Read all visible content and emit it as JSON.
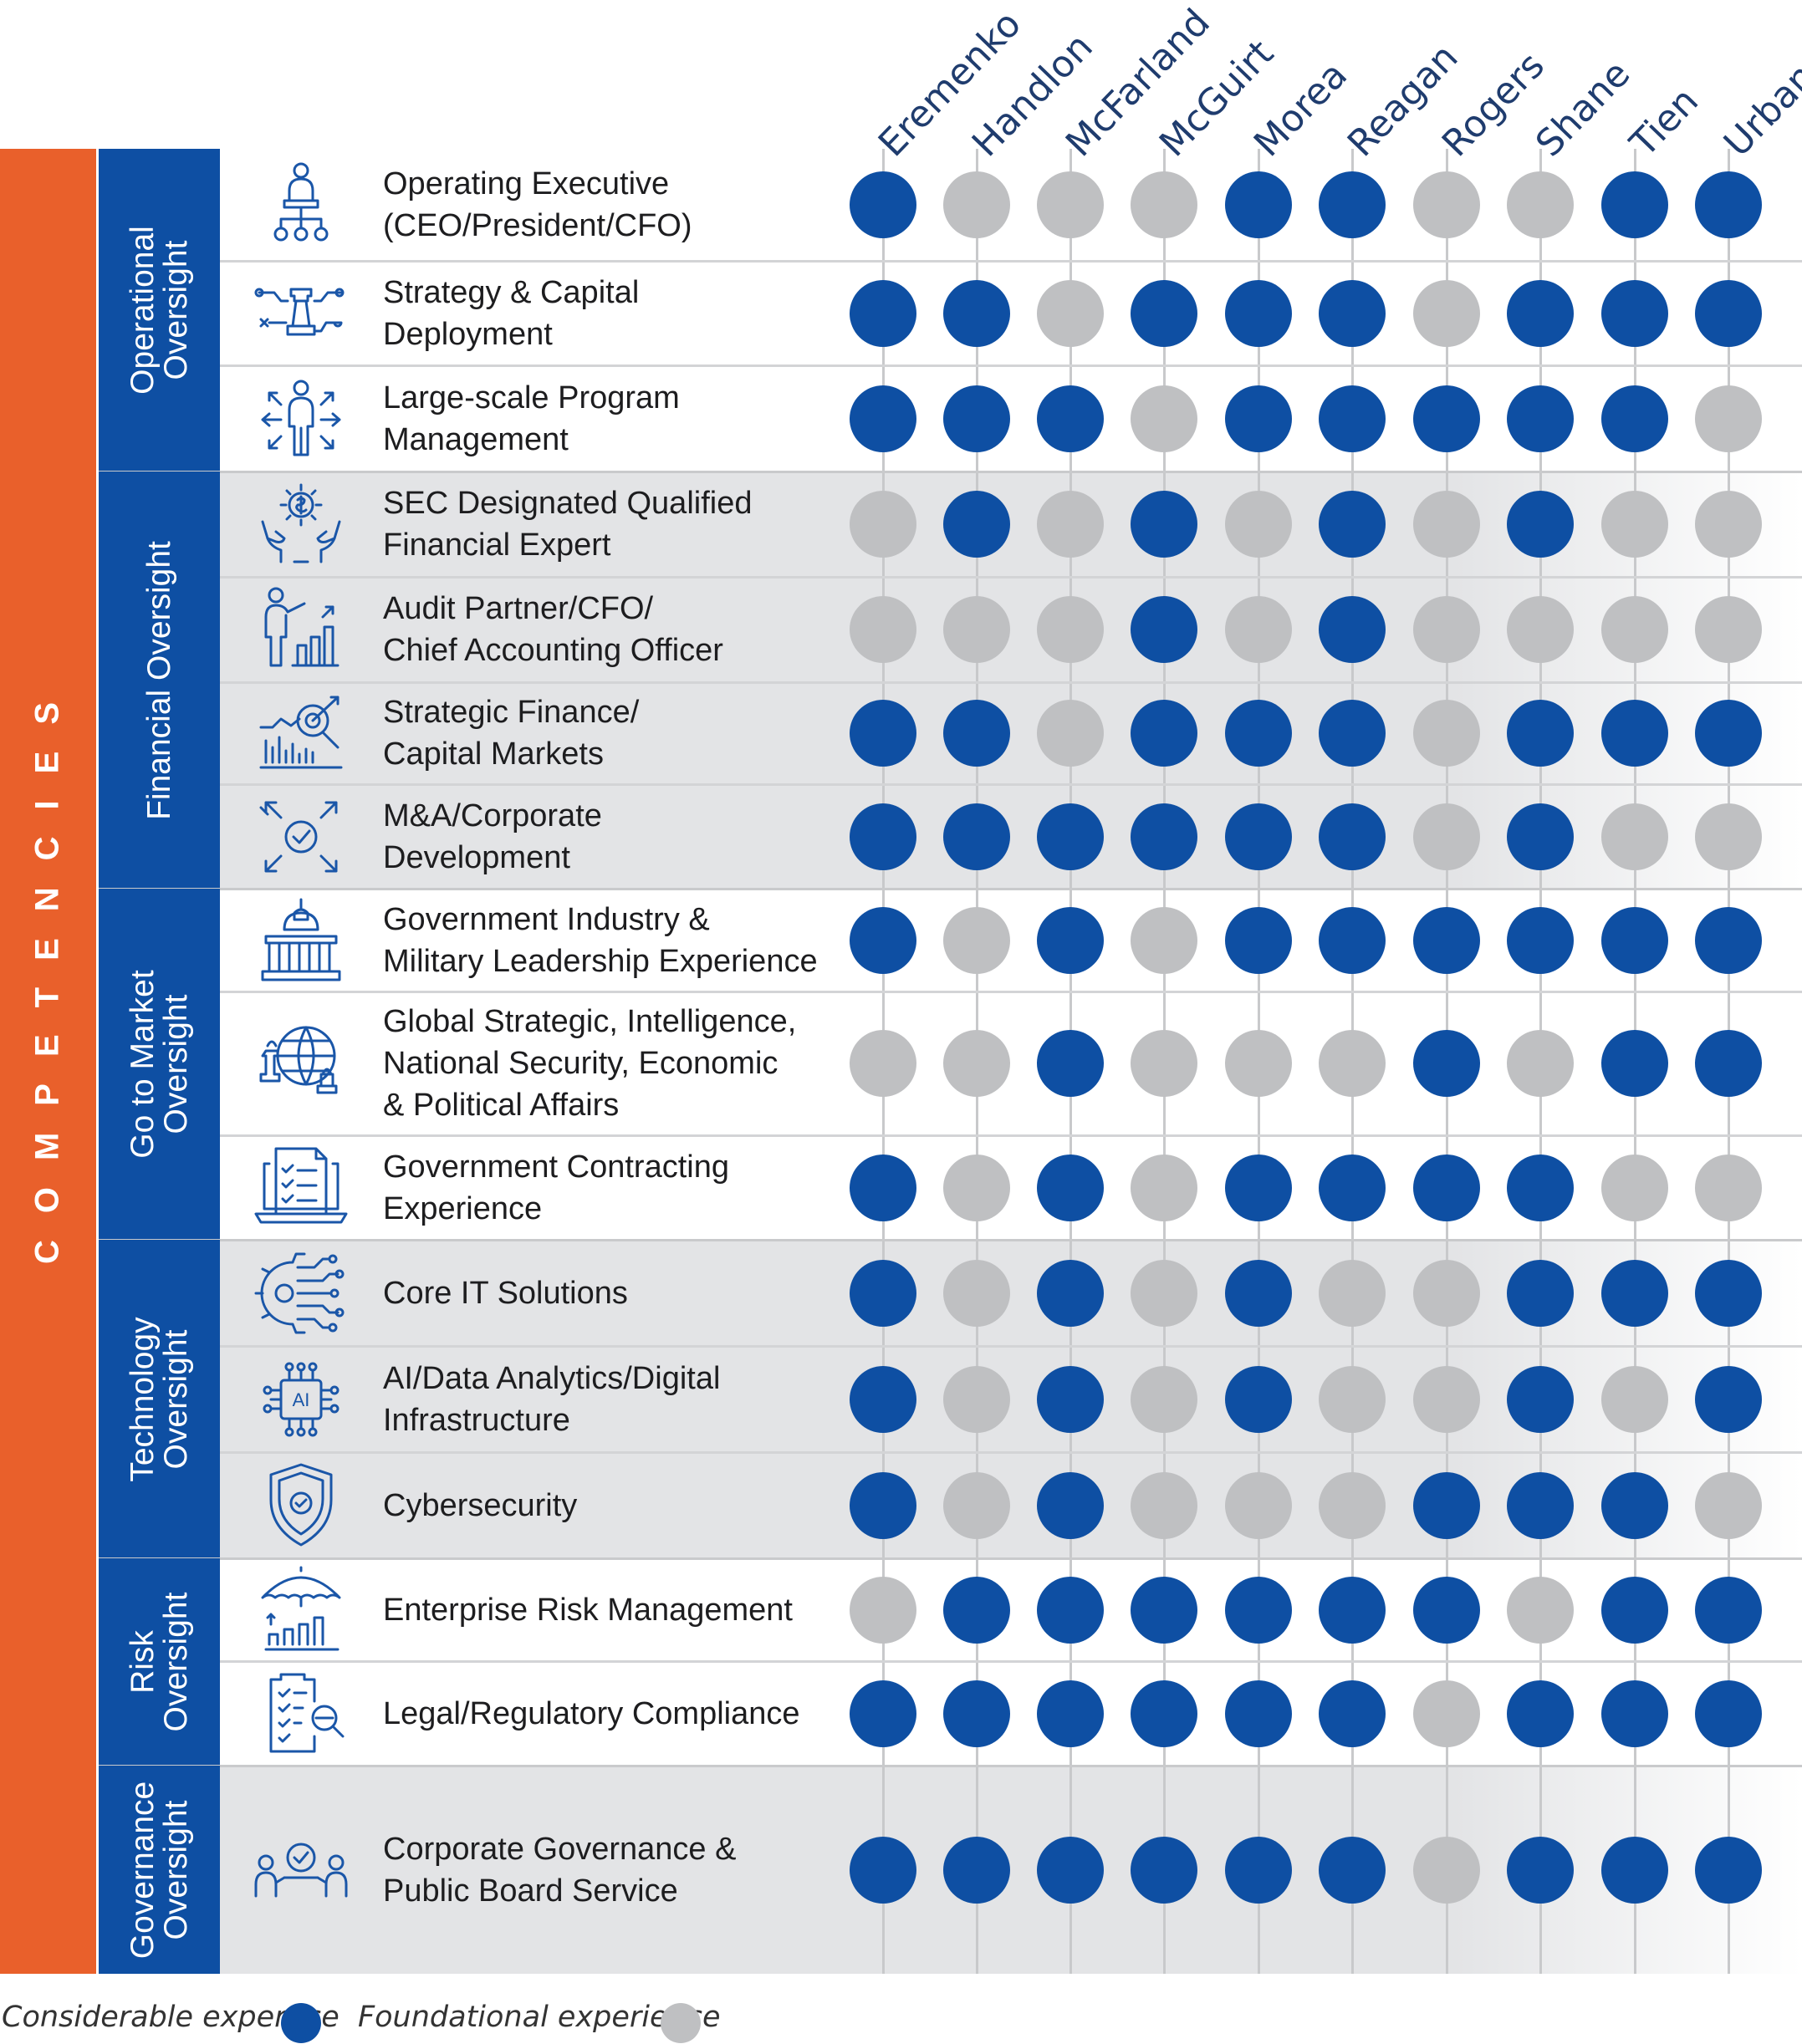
{
  "legend": {
    "considerable_label": "Considerable expertise",
    "foundational_label": "Foundational experience",
    "considerable_color": "#0e4fa3",
    "foundational_color": "#bfc0c2"
  },
  "side_label": "COMPETENCIES",
  "accent_color": "#e9602b",
  "directors": [
    "Eremenko",
    "Handlon",
    "McFarland",
    "McGuirt",
    "Morea",
    "Reagan",
    "Rogers",
    "Shane",
    "Tien",
    "Urban"
  ],
  "groups": [
    {
      "label": "Operational\nOversight",
      "rows": [
        {
          "label": "Operating Executive\n(CEO/President/CFO)",
          "icon": "executive-org-icon",
          "levels": [
            1,
            0,
            0,
            0,
            1,
            1,
            0,
            0,
            1,
            1
          ]
        },
        {
          "label": "Strategy & Capital\nDeployment",
          "icon": "chess-strategy-icon",
          "levels": [
            1,
            1,
            0,
            1,
            1,
            1,
            0,
            1,
            1,
            1
          ]
        },
        {
          "label": "Large-scale Program\nManagement",
          "icon": "person-arrows-icon",
          "levels": [
            1,
            1,
            1,
            0,
            1,
            1,
            1,
            1,
            1,
            0
          ]
        }
      ]
    },
    {
      "label": "Financial Oversight",
      "rows": [
        {
          "label": "SEC Designated Qualified\nFinancial Expert",
          "icon": "hands-gear-dollar-icon",
          "levels": [
            0,
            1,
            0,
            1,
            0,
            1,
            0,
            1,
            0,
            0
          ]
        },
        {
          "label": "Audit Partner/CFO/\nChief Accounting Officer",
          "icon": "person-chart-icon",
          "levels": [
            0,
            0,
            0,
            1,
            0,
            1,
            0,
            0,
            0,
            0
          ]
        },
        {
          "label": "Strategic Finance/\nCapital Markets",
          "icon": "finance-target-icon",
          "levels": [
            1,
            1,
            0,
            1,
            1,
            1,
            0,
            1,
            1,
            1
          ]
        },
        {
          "label": "M&A/Corporate\nDevelopment",
          "icon": "merge-check-icon",
          "levels": [
            1,
            1,
            1,
            1,
            1,
            1,
            0,
            1,
            0,
            0
          ]
        }
      ]
    },
    {
      "label": "Go to Market\nOversight",
      "rows": [
        {
          "label": "Government Industry &\nMilitary Leadership Experience",
          "icon": "capitol-building-icon",
          "levels": [
            1,
            0,
            1,
            0,
            1,
            1,
            1,
            1,
            1,
            1
          ]
        },
        {
          "label": "Global Strategic, Intelligence,\nNational Security, Economic\n& Political Affairs",
          "icon": "globe-chess-icon",
          "levels": [
            0,
            0,
            1,
            0,
            0,
            0,
            1,
            0,
            1,
            1
          ]
        },
        {
          "label": "Government Contracting\nExperience",
          "icon": "laptop-checklist-icon",
          "levels": [
            1,
            0,
            1,
            0,
            1,
            1,
            1,
            1,
            0,
            0
          ]
        }
      ]
    },
    {
      "label": "Technology\nOversight",
      "rows": [
        {
          "label": "Core IT Solutions",
          "icon": "gear-circuit-icon",
          "levels": [
            1,
            0,
            1,
            0,
            1,
            0,
            0,
            1,
            1,
            1
          ]
        },
        {
          "label": "AI/Data Analytics/Digital\nInfrastructure",
          "icon": "ai-chip-icon",
          "levels": [
            1,
            0,
            1,
            0,
            1,
            0,
            0,
            1,
            0,
            1
          ]
        },
        {
          "label": "Cybersecurity",
          "icon": "shield-check-icon",
          "levels": [
            1,
            0,
            1,
            0,
            0,
            0,
            1,
            1,
            1,
            0
          ]
        }
      ]
    },
    {
      "label": "Risk\nOversight",
      "rows": [
        {
          "label": "Enterprise Risk Management",
          "icon": "umbrella-chart-icon",
          "levels": [
            0,
            1,
            1,
            1,
            1,
            1,
            1,
            0,
            1,
            1
          ]
        },
        {
          "label": "Legal/Regulatory Compliance",
          "icon": "clipboard-search-icon",
          "levels": [
            1,
            1,
            1,
            1,
            1,
            1,
            0,
            1,
            1,
            1
          ]
        }
      ]
    },
    {
      "label": "Governance\nOversight",
      "rows": [
        {
          "label": "Corporate Governance &\nPublic Board Service",
          "icon": "people-check-icon",
          "levels": [
            1,
            1,
            1,
            1,
            1,
            1,
            0,
            1,
            1,
            1
          ]
        }
      ]
    }
  ]
}
